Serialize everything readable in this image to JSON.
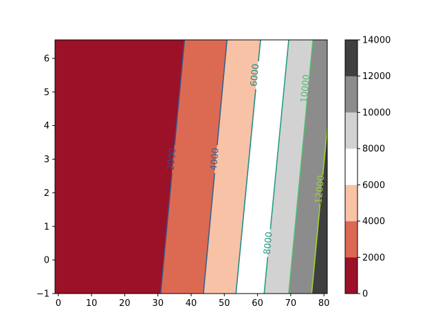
{
  "chart_data": {
    "type": "contour",
    "title": "",
    "xlabel": "",
    "ylabel": "",
    "xlim": [
      -1,
      81
    ],
    "ylim": [
      -1,
      6.55
    ],
    "xticks": [
      "0",
      "10",
      "20",
      "30",
      "40",
      "50",
      "60",
      "70",
      "80"
    ],
    "yticks": [
      "−1",
      "0",
      "1",
      "2",
      "3",
      "4",
      "5",
      "6"
    ],
    "filled_levels": [
      0,
      2000,
      4000,
      6000,
      8000,
      10000,
      12000,
      14000
    ],
    "band_colors": [
      "#9b1127",
      "#dc6a52",
      "#f8c2a6",
      "#ffffff",
      "#d2d2d2",
      "#8c8c8c",
      "#3f3f3f"
    ],
    "boundaries": [
      {
        "level": 2000,
        "x_at_bottom": 30.8,
        "x_at_top": 38.0
      },
      {
        "level": 4000,
        "x_at_bottom": 43.7,
        "x_at_top": 50.8
      },
      {
        "level": 6000,
        "x_at_bottom": 53.5,
        "x_at_top": 60.9
      },
      {
        "level": 8000,
        "x_at_bottom": 62.0,
        "x_at_top": 69.4
      },
      {
        "level": 10000,
        "x_at_bottom": 69.4,
        "x_at_top": 76.7
      },
      {
        "level": 12000,
        "x_at_bottom": 76.3,
        "x_at_top": 83.5
      }
    ],
    "contour_lines": [
      {
        "level": 2000,
        "label": "2000",
        "color": "#3b4f8a",
        "label_at": [
          34.3,
          3.0
        ]
      },
      {
        "level": 4000,
        "label": "4000",
        "color": "#34608d",
        "label_at": [
          47.2,
          3.0
        ]
      },
      {
        "level": 6000,
        "label": "6000",
        "color": "#1f8b8a",
        "label_at": [
          59.3,
          5.5
        ]
      },
      {
        "level": 8000,
        "label": "8000",
        "color": "#239c86",
        "label_at": [
          63.3,
          0.5
        ]
      },
      {
        "level": 10000,
        "label": "10000",
        "color": "#4ebf6b",
        "label_at": [
          74.5,
          5.1
        ]
      },
      {
        "level": 12000,
        "label": "12000",
        "color": "#a0d62c",
        "label_at": [
          78.9,
          2.1
        ]
      }
    ],
    "colorbar": {
      "ticks": [
        "0",
        "2000",
        "4000",
        "6000",
        "8000",
        "10000",
        "12000",
        "14000"
      ]
    }
  }
}
